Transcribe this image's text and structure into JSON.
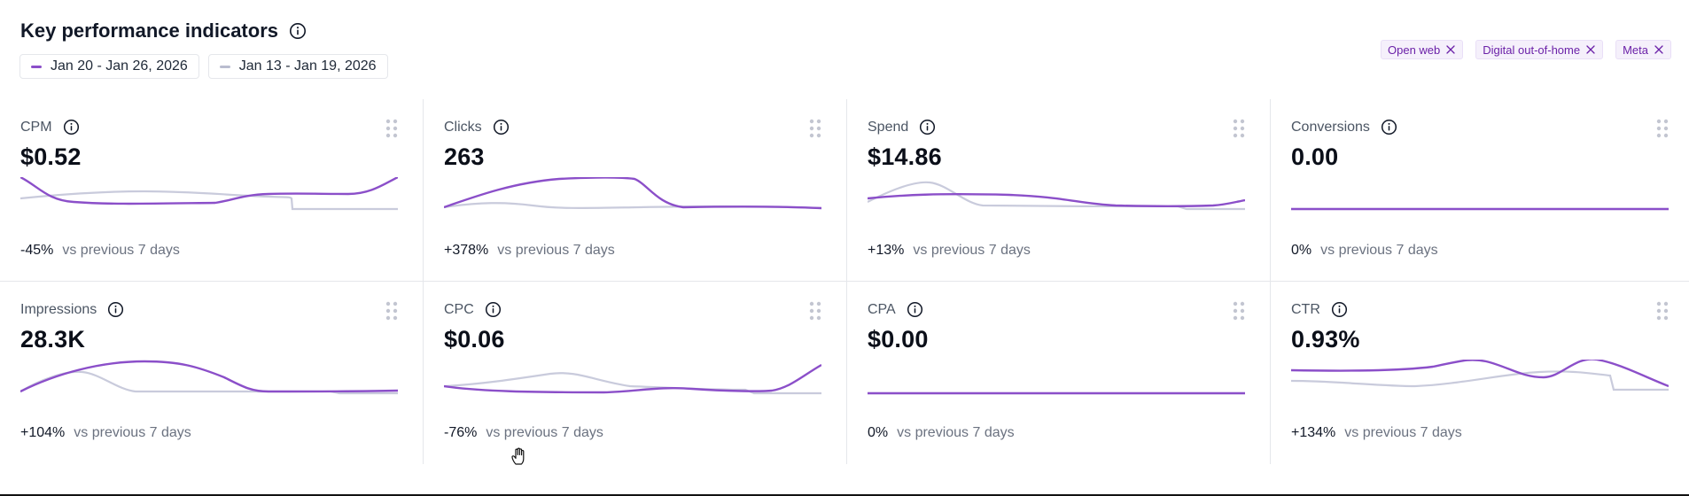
{
  "header": {
    "title": "Key performance indicators",
    "info_icon": "info-icon",
    "legend": [
      {
        "label": "Jan 20 - Jan 26, 2026",
        "color": "#8b4fc9"
      },
      {
        "label": "Jan 13 - Jan 19, 2026",
        "color": "#c9cbdc"
      }
    ],
    "filters": [
      {
        "label": "Open web",
        "icon": "close-icon"
      },
      {
        "label": "Digital out-of-home",
        "icon": "close-icon"
      },
      {
        "label": "Meta",
        "icon": "close-icon"
      }
    ]
  },
  "colors": {
    "current_series": "#8b4fc9",
    "previous_series": "#c9cbdc",
    "filter_text": "#6b21a8",
    "filter_bg": "#f5f0fb"
  },
  "cards": [
    {
      "key": "cpm",
      "label": "CPM",
      "value": "$0.52",
      "delta": "-45%",
      "comparison": "vs previous 7 days"
    },
    {
      "key": "clicks",
      "label": "Clicks",
      "value": "263",
      "delta": "+378%",
      "comparison": "vs previous 7 days"
    },
    {
      "key": "spend",
      "label": "Spend",
      "value": "$14.86",
      "delta": "+13%",
      "comparison": "vs previous 7 days"
    },
    {
      "key": "conversions",
      "label": "Conversions",
      "value": "0.00",
      "delta": "0%",
      "comparison": "vs previous 7 days"
    },
    {
      "key": "impressions",
      "label": "Impressions",
      "value": "28.3K",
      "delta": "+104%",
      "comparison": "vs previous 7 days"
    },
    {
      "key": "cpc",
      "label": "CPC",
      "value": "$0.06",
      "delta": "-76%",
      "comparison": "vs previous 7 days"
    },
    {
      "key": "cpa",
      "label": "CPA",
      "value": "$0.00",
      "delta": "0%",
      "comparison": "vs previous 7 days"
    },
    {
      "key": "ctr",
      "label": "CTR",
      "value": "0.93%",
      "delta": "+134%",
      "comparison": "vs previous 7 days"
    }
  ],
  "icons": {
    "card_info": "info-icon",
    "card_drag": "drag-handle-icon",
    "cursor": "hand-cursor-icon"
  }
}
